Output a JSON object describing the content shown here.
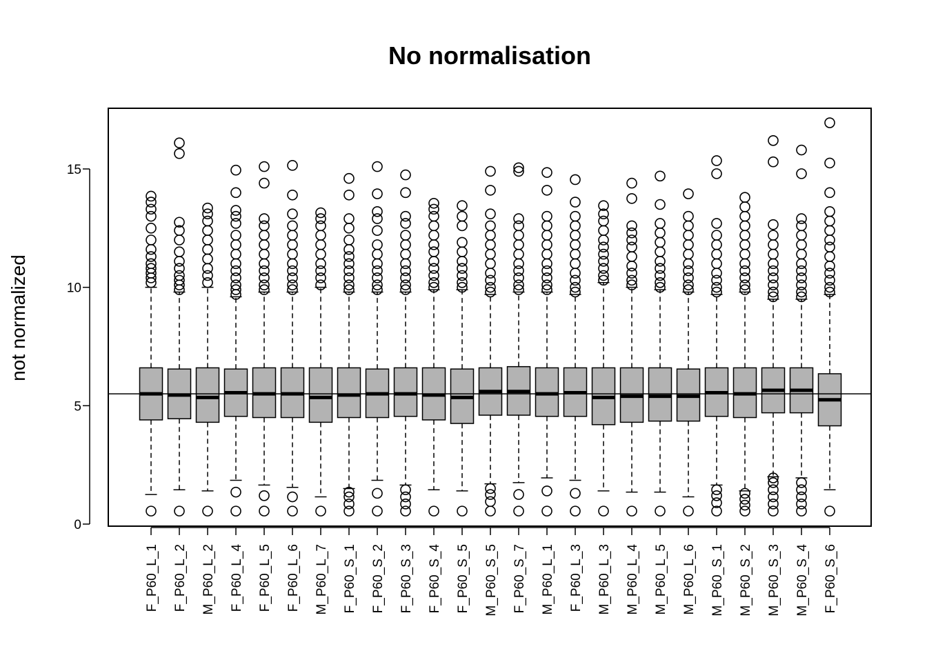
{
  "chart_data": {
    "type": "boxplot",
    "title": "No normalisation",
    "xlabel": "",
    "ylabel": "not normalized",
    "ylim": [
      0,
      17.5
    ],
    "yticks": [
      0,
      5,
      10,
      15
    ],
    "reference_line": 5.5,
    "box_color": "#b3b3b3",
    "categories": [
      "F_P60_L_1",
      "F_P60_L_2",
      "M_P60_L_2",
      "F_P60_L_4",
      "F_P60_L_5",
      "F_P60_L_6",
      "M_P60_L_7",
      "F_P60_S_1",
      "F_P60_S_2",
      "F_P60_S_3",
      "F_P60_S_4",
      "F_P60_S_5",
      "M_P60_S_5",
      "F_P60_S_7",
      "M_P60_L_1",
      "F_P60_L_3",
      "M_P60_L_3",
      "M_P60_L_4",
      "M_P60_L_5",
      "M_P60_L_6",
      "M_P60_S_1",
      "M_P60_S_2",
      "M_P60_S_3",
      "M_P60_S_4",
      "F_P60_S_6"
    ],
    "boxes": [
      {
        "whisker_low": 1.25,
        "q1": 4.4,
        "median": 5.5,
        "q3": 6.6,
        "whisker_high": 10.0,
        "outliers": [
          0.55,
          10.2,
          10.4,
          10.6,
          10.8,
          11.0,
          11.3,
          11.6,
          12.0,
          12.5,
          13.0,
          13.3,
          13.6,
          13.85
        ]
      },
      {
        "whisker_low": 1.45,
        "q1": 4.45,
        "median": 5.45,
        "q3": 6.55,
        "whisker_high": 9.8,
        "outliers": [
          0.55,
          9.9,
          10.1,
          10.3,
          10.5,
          10.8,
          11.1,
          11.5,
          12.0,
          12.4,
          12.75,
          15.65,
          16.1
        ]
      },
      {
        "whisker_low": 1.4,
        "q1": 4.3,
        "median": 5.35,
        "q3": 6.6,
        "whisker_high": 10.0,
        "outliers": [
          0.55,
          10.2,
          10.5,
          10.8,
          11.2,
          11.6,
          12.0,
          12.4,
          12.8,
          13.1,
          13.35
        ]
      },
      {
        "whisker_low": 1.85,
        "q1": 4.55,
        "median": 5.55,
        "q3": 6.55,
        "whisker_high": 9.6,
        "outliers": [
          0.55,
          1.35,
          9.7,
          9.9,
          10.1,
          10.4,
          10.7,
          11.0,
          11.4,
          11.8,
          12.2,
          12.7,
          13.0,
          13.25,
          14.0,
          14.95
        ]
      },
      {
        "whisker_low": 1.65,
        "q1": 4.5,
        "median": 5.5,
        "q3": 6.6,
        "whisker_high": 9.8,
        "outliers": [
          0.55,
          1.2,
          9.9,
          10.1,
          10.4,
          10.7,
          11.0,
          11.4,
          11.8,
          12.2,
          12.6,
          12.9,
          14.4,
          15.1
        ]
      },
      {
        "whisker_low": 1.55,
        "q1": 4.5,
        "median": 5.5,
        "q3": 6.6,
        "whisker_high": 9.8,
        "outliers": [
          0.55,
          1.15,
          9.9,
          10.1,
          10.4,
          10.7,
          11.0,
          11.4,
          11.8,
          12.2,
          12.6,
          13.1,
          13.9,
          15.15
        ]
      },
      {
        "whisker_low": 1.15,
        "q1": 4.3,
        "median": 5.35,
        "q3": 6.6,
        "whisker_high": 10.0,
        "outliers": [
          0.55,
          10.1,
          10.4,
          10.7,
          11.0,
          11.4,
          11.8,
          12.2,
          12.6,
          12.9,
          13.15
        ]
      },
      {
        "whisker_low": 1.5,
        "q1": 4.5,
        "median": 5.45,
        "q3": 6.6,
        "whisker_high": 9.8,
        "outliers": [
          0.55,
          0.85,
          1.15,
          1.35,
          9.9,
          10.1,
          10.4,
          10.7,
          11.0,
          11.3,
          11.6,
          12.0,
          12.5,
          12.9,
          13.9,
          14.6
        ]
      },
      {
        "whisker_low": 1.85,
        "q1": 4.5,
        "median": 5.5,
        "q3": 6.55,
        "whisker_high": 9.8,
        "outliers": [
          0.55,
          1.3,
          9.9,
          10.1,
          10.4,
          10.7,
          11.0,
          11.4,
          11.8,
          12.4,
          12.9,
          13.2,
          13.95,
          15.1
        ]
      },
      {
        "whisker_low": 1.65,
        "q1": 4.55,
        "median": 5.5,
        "q3": 6.6,
        "whisker_high": 9.8,
        "outliers": [
          0.55,
          0.85,
          1.15,
          1.45,
          9.9,
          10.1,
          10.4,
          10.7,
          11.0,
          11.4,
          11.8,
          12.2,
          12.7,
          13.0,
          14.0,
          14.75
        ]
      },
      {
        "whisker_low": 1.45,
        "q1": 4.4,
        "median": 5.45,
        "q3": 6.6,
        "whisker_high": 9.9,
        "outliers": [
          0.55,
          10.0,
          10.2,
          10.5,
          10.8,
          11.1,
          11.5,
          11.8,
          12.2,
          12.6,
          13.0,
          13.3,
          13.55
        ]
      },
      {
        "whisker_low": 1.4,
        "q1": 4.25,
        "median": 5.35,
        "q3": 6.55,
        "whisker_high": 9.9,
        "outliers": [
          0.55,
          10.0,
          10.2,
          10.5,
          10.8,
          11.1,
          11.5,
          11.9,
          12.6,
          13.0,
          13.45
        ]
      },
      {
        "whisker_low": 1.7,
        "q1": 4.6,
        "median": 5.6,
        "q3": 6.6,
        "whisker_high": 9.7,
        "outliers": [
          0.55,
          0.95,
          1.25,
          1.5,
          9.8,
          10.0,
          10.3,
          10.6,
          11.0,
          11.4,
          11.8,
          12.2,
          12.6,
          13.1,
          14.1,
          14.9
        ]
      },
      {
        "whisker_low": 1.75,
        "q1": 4.6,
        "median": 5.6,
        "q3": 6.65,
        "whisker_high": 9.8,
        "outliers": [
          0.55,
          1.25,
          9.9,
          10.1,
          10.4,
          10.7,
          11.0,
          11.4,
          11.8,
          12.2,
          12.6,
          12.9,
          14.9,
          15.05
        ]
      },
      {
        "whisker_low": 1.95,
        "q1": 4.55,
        "median": 5.5,
        "q3": 6.6,
        "whisker_high": 9.8,
        "outliers": [
          0.55,
          1.4,
          9.9,
          10.1,
          10.4,
          10.7,
          11.0,
          11.4,
          11.8,
          12.2,
          12.6,
          13.0,
          14.1,
          14.85
        ]
      },
      {
        "whisker_low": 1.85,
        "q1": 4.55,
        "median": 5.55,
        "q3": 6.6,
        "whisker_high": 9.7,
        "outliers": [
          0.55,
          1.3,
          9.8,
          10.0,
          10.3,
          10.6,
          11.0,
          11.4,
          11.8,
          12.2,
          12.6,
          13.0,
          13.6,
          14.55
        ]
      },
      {
        "whisker_low": 1.4,
        "q1": 4.2,
        "median": 5.35,
        "q3": 6.6,
        "whisker_high": 10.2,
        "outliers": [
          0.55,
          10.3,
          10.5,
          10.8,
          11.1,
          11.4,
          11.7,
          12.0,
          12.4,
          12.8,
          13.1,
          13.45
        ]
      },
      {
        "whisker_low": 1.35,
        "q1": 4.3,
        "median": 5.4,
        "q3": 6.6,
        "whisker_high": 10.0,
        "outliers": [
          0.55,
          10.1,
          10.3,
          10.6,
          10.9,
          11.3,
          11.7,
          12.0,
          12.3,
          12.6,
          13.75,
          14.4
        ]
      },
      {
        "whisker_low": 1.35,
        "q1": 4.35,
        "median": 5.4,
        "q3": 6.6,
        "whisker_high": 9.9,
        "outliers": [
          0.55,
          10.0,
          10.2,
          10.5,
          10.8,
          11.1,
          11.5,
          11.9,
          12.3,
          12.7,
          13.5,
          14.7
        ]
      },
      {
        "whisker_low": 1.15,
        "q1": 4.35,
        "median": 5.4,
        "q3": 6.55,
        "whisker_high": 9.8,
        "outliers": [
          0.55,
          9.9,
          10.1,
          10.4,
          10.7,
          11.0,
          11.4,
          11.8,
          12.2,
          12.6,
          13.0,
          13.95
        ]
      },
      {
        "whisker_low": 1.65,
        "q1": 4.55,
        "median": 5.55,
        "q3": 6.6,
        "whisker_high": 9.7,
        "outliers": [
          0.55,
          0.9,
          1.2,
          1.45,
          9.8,
          10.0,
          10.3,
          10.6,
          11.0,
          11.4,
          11.8,
          12.2,
          12.7,
          14.8,
          15.35
        ]
      },
      {
        "whisker_low": 1.4,
        "q1": 4.5,
        "median": 5.5,
        "q3": 6.6,
        "whisker_high": 9.8,
        "outliers": [
          0.55,
          0.8,
          1.05,
          1.3,
          9.9,
          10.1,
          10.4,
          10.7,
          11.0,
          11.4,
          11.8,
          12.2,
          12.6,
          13.0,
          13.4,
          13.8
        ]
      },
      {
        "whisker_low": 2.0,
        "q1": 4.7,
        "median": 5.65,
        "q3": 6.6,
        "whisker_high": 9.5,
        "outliers": [
          0.55,
          0.85,
          1.15,
          1.45,
          1.75,
          1.95,
          9.6,
          9.8,
          10.1,
          10.4,
          10.7,
          11.0,
          11.4,
          11.8,
          12.2,
          12.65,
          15.3,
          16.2
        ]
      },
      {
        "whisker_low": 1.95,
        "q1": 4.7,
        "median": 5.65,
        "q3": 6.6,
        "whisker_high": 9.5,
        "outliers": [
          0.55,
          0.85,
          1.15,
          1.45,
          1.75,
          9.6,
          9.8,
          10.1,
          10.4,
          10.7,
          11.0,
          11.4,
          11.8,
          12.2,
          12.6,
          12.9,
          14.8,
          15.8
        ]
      },
      {
        "whisker_low": 1.45,
        "q1": 4.15,
        "median": 5.25,
        "q3": 6.35,
        "whisker_high": 9.7,
        "outliers": [
          0.55,
          9.8,
          10.0,
          10.3,
          10.6,
          10.9,
          11.3,
          11.7,
          12.0,
          12.4,
          12.8,
          13.2,
          14.0,
          15.25,
          16.95
        ]
      }
    ]
  }
}
